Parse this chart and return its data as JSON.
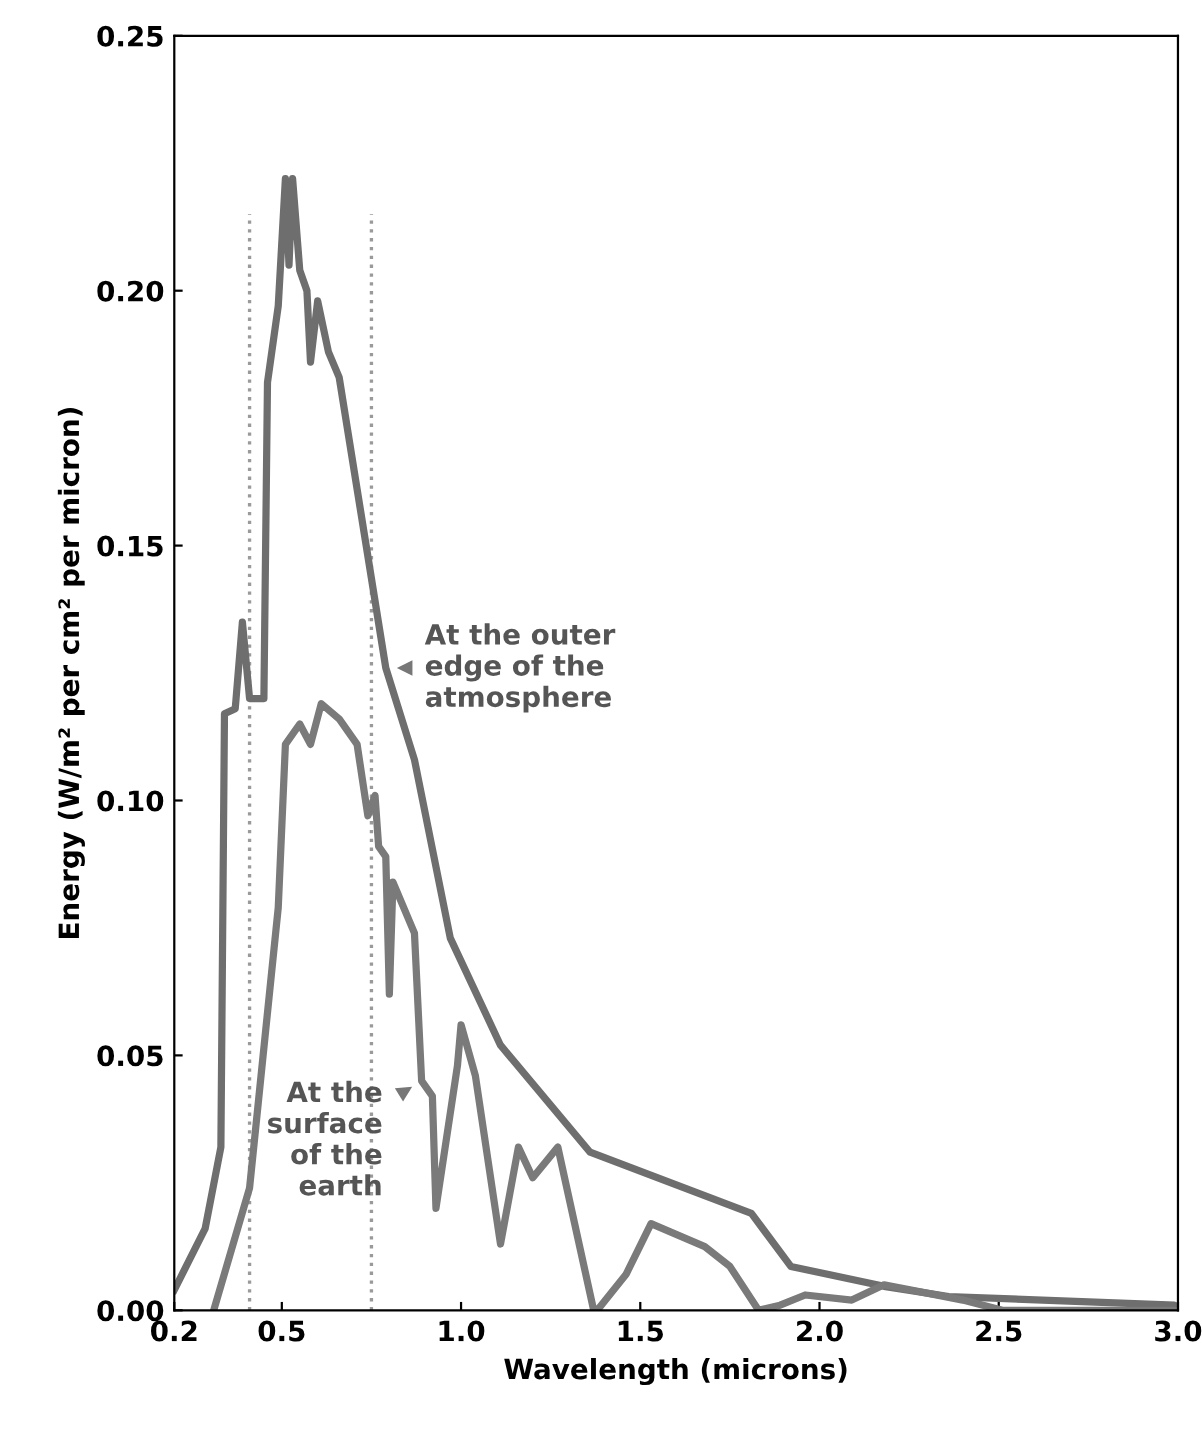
{
  "chart_data": {
    "type": "line",
    "xlabel": "Wavelength (microns)",
    "ylabel": "Energy (W/m² per cm² per micron)",
    "xlim": [
      0.2,
      3.0
    ],
    "ylim": [
      0,
      0.25
    ],
    "xticks": [
      0.2,
      0.5,
      {
        "value": 1.0,
        "label": "1.0"
      },
      1.5,
      {
        "value": 2.0,
        "label": "2.0"
      },
      2.5,
      {
        "value": 3.0,
        "label": "3.0"
      }
    ],
    "yticks": [
      {
        "value": 0,
        "label": "0.00"
      },
      0.05,
      {
        "value": 0.1,
        "label": "0.10"
      },
      0.15,
      {
        "value": 0.2,
        "label": "0.20"
      },
      0.25
    ],
    "grid": false,
    "legend": false,
    "line_style": "solid",
    "marker": "none",
    "series": [
      {
        "color": "#6e6e6e",
        "x": [
          0.2,
          0.286,
          0.33,
          0.34,
          0.37,
          0.39,
          0.41,
          0.45,
          0.46,
          0.49,
          0.51,
          0.52,
          0.53,
          0.55,
          0.57,
          0.58,
          0.6,
          0.63,
          0.66,
          0.79,
          0.87,
          0.97,
          1.11,
          1.36,
          1.81,
          1.92,
          2.18,
          2.36,
          2.99,
          3.0
        ],
        "values": [
          0.004,
          0.016,
          0.032,
          0.117,
          0.118,
          0.135,
          0.12,
          0.12,
          0.182,
          0.197,
          0.222,
          0.205,
          0.222,
          0.204,
          0.2,
          0.186,
          0.198,
          0.188,
          0.183,
          0.126,
          0.108,
          0.073,
          0.052,
          0.031,
          0.019,
          0.0086,
          0.0047,
          0.0027,
          0.001,
          0.0
        ]
      },
      {
        "color": "#7a7a7a",
        "x": [
          0.31,
          0.41,
          0.49,
          0.51,
          0.55,
          0.58,
          0.61,
          0.66,
          0.71,
          0.74,
          0.76,
          0.77,
          0.79,
          0.8,
          0.81,
          0.84,
          0.87,
          0.89,
          0.92,
          0.93,
          0.99,
          1.0,
          1.04,
          1.11,
          1.16,
          1.2,
          1.27,
          1.37,
          1.38,
          1.46,
          1.53,
          1.68,
          1.75,
          1.83,
          1.89,
          1.96,
          2.09,
          2.18,
          2.4,
          2.51,
          3.0
        ],
        "values": [
          0,
          0.024,
          0.079,
          0.111,
          0.115,
          0.111,
          0.119,
          0.116,
          0.111,
          0.097,
          0.101,
          0.091,
          0.089,
          0.062,
          0.084,
          0.079,
          0.074,
          0.045,
          0.042,
          0.02,
          0.048,
          0.056,
          0.046,
          0.013,
          0.032,
          0.026,
          0.032,
          0,
          0,
          0.007,
          0.017,
          0.0125,
          0.0086,
          0,
          0.001,
          0.003,
          0.002,
          0.005,
          0.002,
          0,
          0
        ]
      }
    ],
    "ref_lines": [
      {
        "axis": "x",
        "value": 0.41,
        "color": "#9a9a9a",
        "line_style": "dotted"
      },
      {
        "axis": "x",
        "value": 0.75,
        "color": "#9a9a9a",
        "line_style": "dotted"
      }
    ],
    "annotations": [
      {
        "text": "At the outer\nedge of the\natmosphere",
        "x": 0.79,
        "y": 0.126
      },
      {
        "text": "At the\nsurface\nof the\nearth",
        "x": 0.89,
        "y": 0.045
      }
    ]
  }
}
